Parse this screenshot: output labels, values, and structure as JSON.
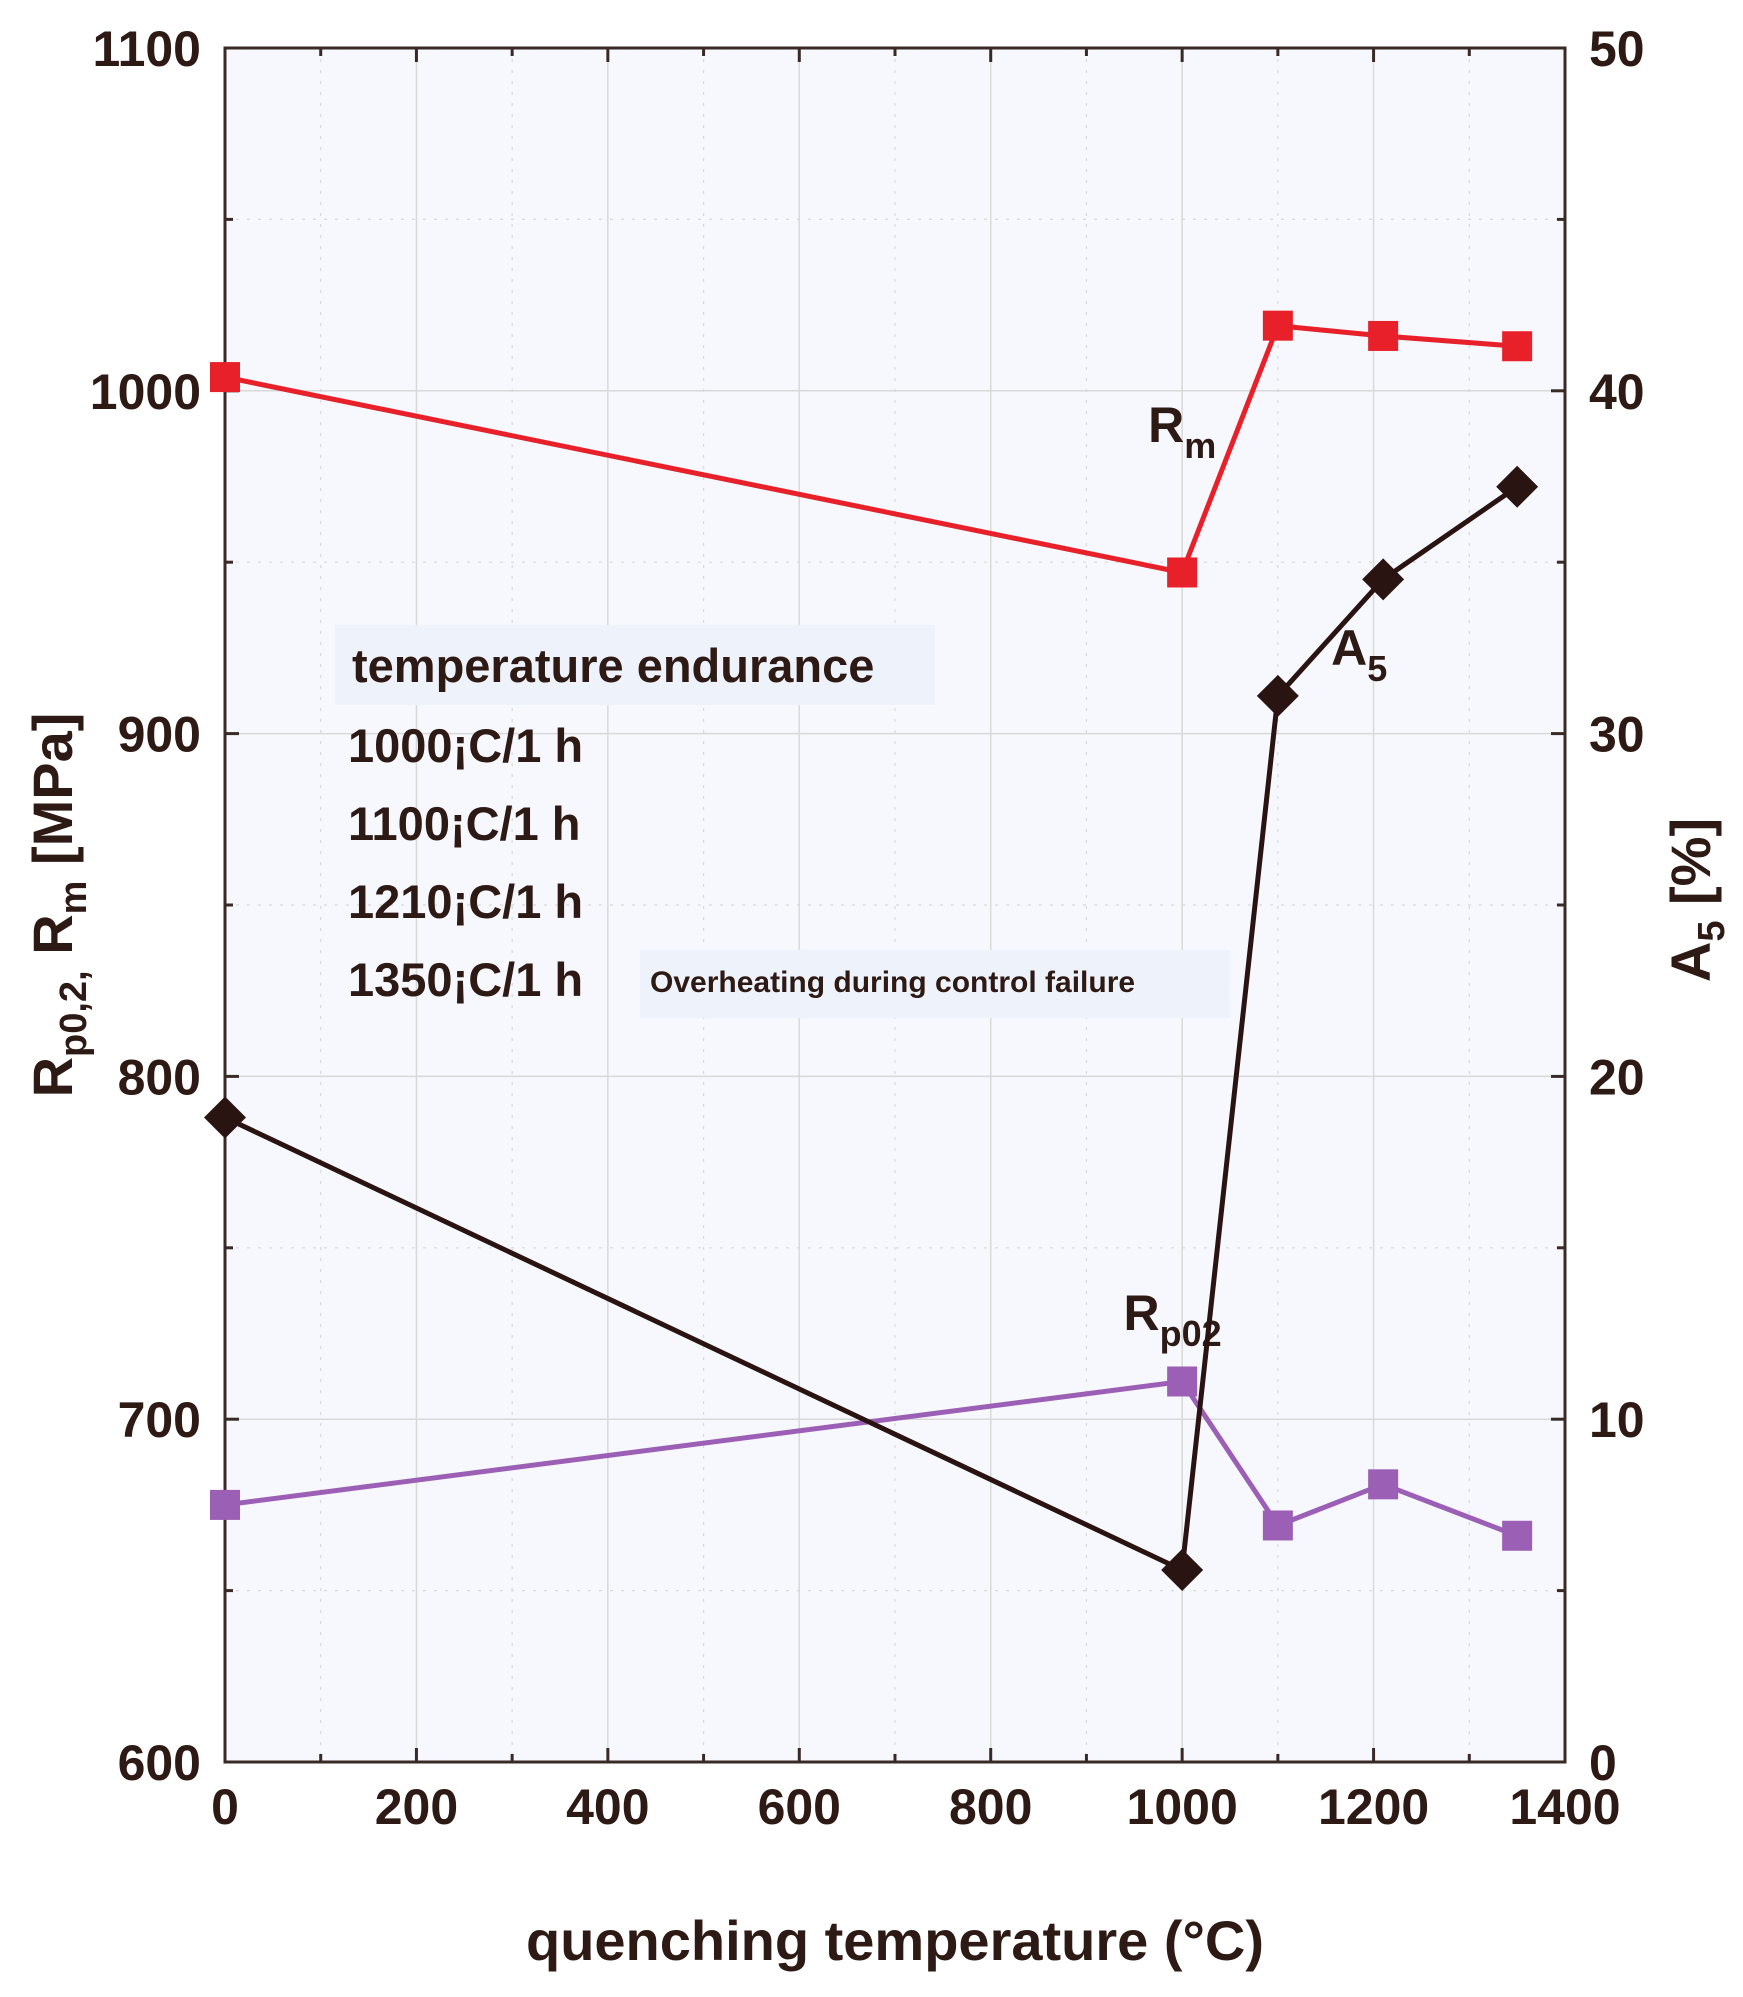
{
  "colors": {
    "rm": "#e8202a",
    "rp02": "#9b5fb5",
    "a5": "#2a1412",
    "text": "#2e1a14",
    "axis": "#3a2a26",
    "plot_bg": "#f6f8fd",
    "note_bg": "#eef2fa"
  },
  "chart_data": {
    "type": "line",
    "title": "",
    "xlabel": "quenching temperature (°C)",
    "ylabel_left": {
      "main": "R",
      "sub1": "p0,2,",
      "main2": " R",
      "sub2": "m",
      "unit": "   [MPa]"
    },
    "ylabel_right": {
      "main": "A",
      "sub": "5",
      "unit": "  [%]"
    },
    "xlim": [
      0,
      1400
    ],
    "ylim_left": [
      600,
      1100
    ],
    "ylim_right": [
      0,
      50
    ],
    "grid": true,
    "x_ticks": [
      "0",
      "200",
      "400",
      "600",
      "800",
      "1000",
      "1200",
      "1400"
    ],
    "y_left_ticks": [
      "600",
      "700",
      "800",
      "900",
      "1000",
      "1100"
    ],
    "y_right_ticks": [
      "0",
      "10",
      "20",
      "30",
      "40",
      "50"
    ],
    "series": [
      {
        "name": "Rm",
        "axis": "left",
        "marker": "square",
        "color": "#e8202a",
        "label": {
          "main": "R",
          "sub": "m",
          "at_x": 1000,
          "at_y": 985
        },
        "x": [
          0,
          1000,
          1100,
          1210,
          1350
        ],
        "values": [
          1004,
          947,
          1019,
          1016,
          1013
        ]
      },
      {
        "name": "Rp02",
        "axis": "left",
        "marker": "square",
        "color": "#9b5fb5",
        "label": {
          "main": "R",
          "sub": "p02",
          "at_x": 990,
          "at_y": 726
        },
        "x": [
          0,
          1000,
          1100,
          1210,
          1350
        ],
        "values": [
          675,
          711,
          669,
          681,
          666
        ]
      },
      {
        "name": "A5",
        "axis": "right",
        "marker": "diamond",
        "color": "#2a1412",
        "label": {
          "main": "A",
          "sub": "5",
          "at_x": 1185,
          "at_y": 32.0
        },
        "x": [
          0,
          1000,
          1100,
          1210,
          1350
        ],
        "values": [
          18.8,
          5.6,
          31.1,
          34.5,
          37.2
        ]
      }
    ],
    "legend": {
      "title": "temperature endurance",
      "items": [
        "1000¡C/1 h",
        "1100¡C/1 h",
        "1210¡C/1 h",
        "1350¡C/1 h"
      ],
      "note": "Overheating during control failure"
    }
  }
}
